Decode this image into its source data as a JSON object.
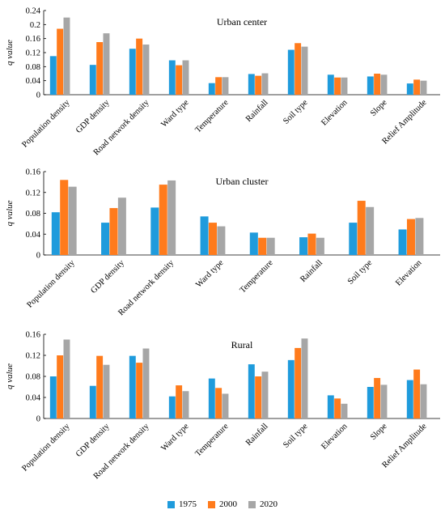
{
  "colors": {
    "1975": "#1f9bdc",
    "2000": "#ff7b1c",
    "2020": "#a6a6a6"
  },
  "chart_data": [
    {
      "type": "bar",
      "title": "Urban center",
      "ylabel": "q value",
      "ylim": [
        0,
        0.24
      ],
      "yticks": [
        "0",
        "0.04",
        "0.08",
        "0.12",
        "0.16",
        "0.2",
        "0.24"
      ],
      "categories": [
        "Population density",
        "GDP density",
        "Road network density",
        "Ward type",
        "Temperature",
        "Rainfall",
        "Soil type",
        "Elevation",
        "Slope",
        "Relief Amplitude"
      ],
      "series": [
        {
          "name": "1975",
          "values": [
            0.11,
            0.085,
            0.131,
            0.098,
            0.033,
            0.059,
            0.128,
            0.057,
            0.052,
            0.032
          ]
        },
        {
          "name": "2000",
          "values": [
            0.188,
            0.15,
            0.16,
            0.084,
            0.05,
            0.054,
            0.147,
            0.049,
            0.06,
            0.043
          ]
        },
        {
          "name": "2020",
          "values": [
            0.22,
            0.175,
            0.143,
            0.098,
            0.05,
            0.061,
            0.137,
            0.049,
            0.057,
            0.04
          ]
        }
      ]
    },
    {
      "type": "bar",
      "title": "Urban cluster",
      "ylabel": "q value",
      "ylim": [
        0,
        0.16
      ],
      "yticks": [
        "0",
        "0.04",
        "0.08",
        "0.12",
        "0.16"
      ],
      "categories": [
        "Population density",
        "GDP density",
        "Road network density",
        "Ward type",
        "Temperature",
        "Rainfall",
        "Soil type",
        "Elevation"
      ],
      "series": [
        {
          "name": "1975",
          "values": [
            0.082,
            0.062,
            0.091,
            0.074,
            0.043,
            0.034,
            0.062,
            0.049
          ]
        },
        {
          "name": "2000",
          "values": [
            0.144,
            0.09,
            0.135,
            0.062,
            0.033,
            0.041,
            0.104,
            0.069
          ]
        },
        {
          "name": "2020",
          "values": [
            0.131,
            0.11,
            0.143,
            0.055,
            0.033,
            0.033,
            0.092,
            0.071
          ]
        }
      ]
    },
    {
      "type": "bar",
      "title": "Rural",
      "ylabel": "q value",
      "ylim": [
        0,
        0.16
      ],
      "yticks": [
        "0",
        "0.04",
        "0.08",
        "0.12",
        "0.16"
      ],
      "categories": [
        "Population density",
        "GDP density",
        "Road network density",
        "Ward type",
        "Temperature",
        "Rainfall",
        "Soil type",
        "Elevation",
        "Slope",
        "Relief Amplitude"
      ],
      "series": [
        {
          "name": "1975",
          "values": [
            0.08,
            0.062,
            0.119,
            0.042,
            0.076,
            0.103,
            0.111,
            0.044,
            0.06,
            0.073
          ]
        },
        {
          "name": "2000",
          "values": [
            0.12,
            0.119,
            0.106,
            0.063,
            0.058,
            0.08,
            0.134,
            0.038,
            0.077,
            0.093
          ]
        },
        {
          "name": "2020",
          "values": [
            0.15,
            0.102,
            0.133,
            0.052,
            0.047,
            0.089,
            0.152,
            0.028,
            0.064,
            0.065
          ]
        }
      ]
    }
  ],
  "legend": [
    "1975",
    "2000",
    "2020"
  ]
}
